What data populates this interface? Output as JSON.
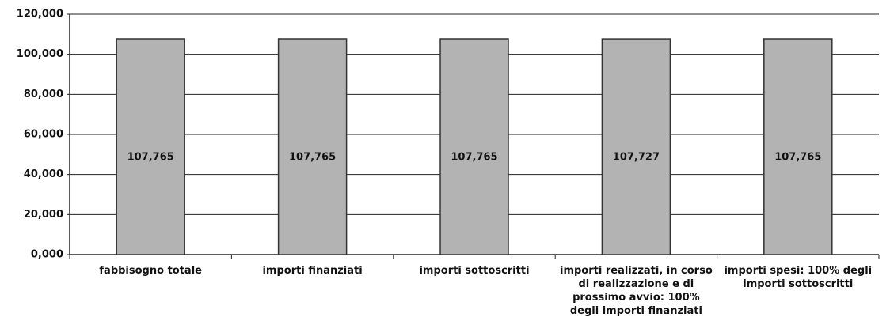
{
  "chart_data": {
    "type": "bar",
    "categories": [
      "fabbisogno totale",
      "importi finanziati",
      "importi sottoscritti",
      "importi realizzati, in corso di realizzazione e di prossimo avvio: 100% degli importi finanziati",
      "importi spesi: 100% degli importi sottoscritti"
    ],
    "values": [
      107765,
      107765,
      107765,
      107727,
      107765
    ],
    "value_labels": [
      "107,765",
      "107,765",
      "107,765",
      "107,727",
      "107,765"
    ],
    "color": "#b3b3b3",
    "ylim": [
      0,
      120000
    ],
    "yticks": [
      {
        "value": 0,
        "label": "0,000"
      },
      {
        "value": 20000,
        "label": "20,000"
      },
      {
        "value": 40000,
        "label": "40,000"
      },
      {
        "value": 60000,
        "label": "60,000"
      },
      {
        "value": 80000,
        "label": "80,000"
      },
      {
        "value": 100000,
        "label": "100,000"
      },
      {
        "value": 120000,
        "label": "120,000"
      }
    ],
    "grid": true
  }
}
